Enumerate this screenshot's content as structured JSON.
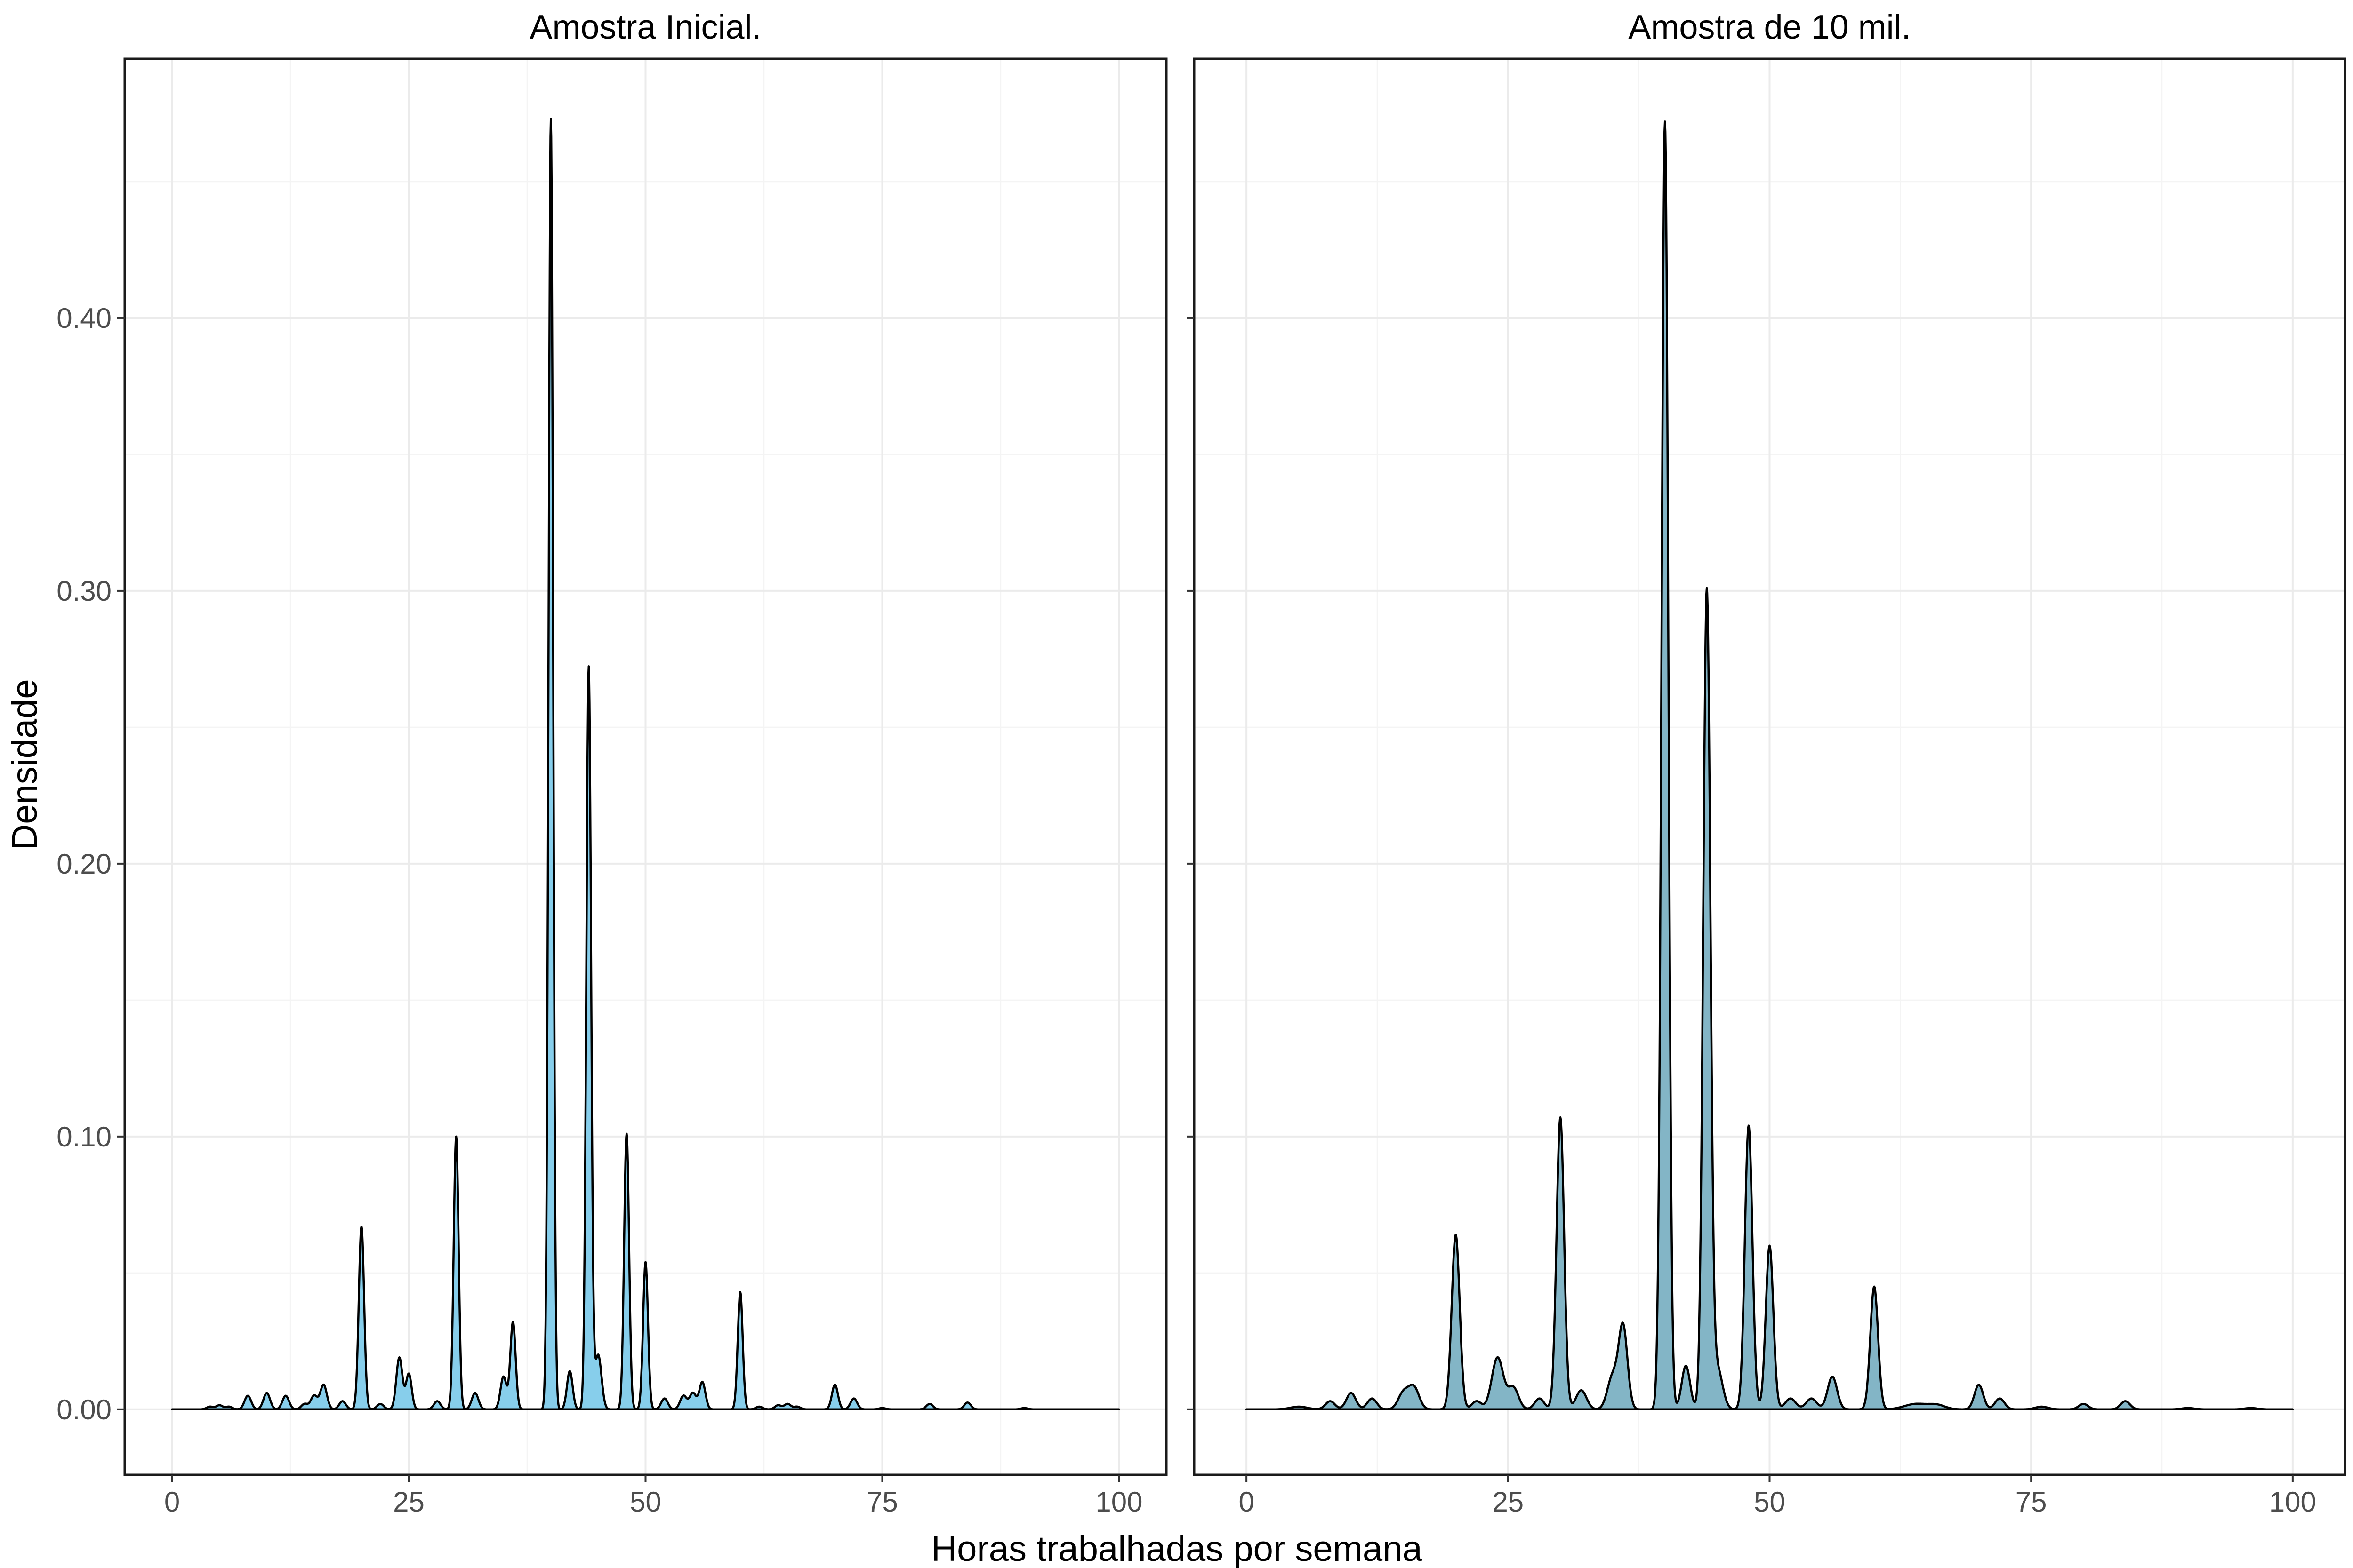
{
  "chart_data": {
    "type": "area",
    "xlabel": "Horas trabalhadas por semana",
    "ylabel": "Densidade",
    "xlim": [
      -5,
      105
    ],
    "ylim": [
      -0.024,
      0.495
    ],
    "x_ticks": [
      0,
      25,
      50,
      75,
      100
    ],
    "x_tick_labels": [
      "0",
      "25",
      "50",
      "75",
      "100"
    ],
    "y_ticks": [
      0.0,
      0.1,
      0.2,
      0.3,
      0.4
    ],
    "y_tick_labels": [
      "0.00",
      "0.10",
      "0.20",
      "0.30",
      "0.40"
    ],
    "grid": true,
    "panels": [
      {
        "title": "Amostra Inicial.",
        "fill_color": "#87ceeb",
        "baseline": [
          0.0,
          100.0
        ],
        "peaks": [
          {
            "x": 4,
            "y": 0.001,
            "w": 0.35
          },
          {
            "x": 5,
            "y": 0.0015,
            "w": 0.35
          },
          {
            "x": 6,
            "y": 0.001,
            "w": 0.35
          },
          {
            "x": 8,
            "y": 0.005,
            "w": 0.35
          },
          {
            "x": 10,
            "y": 0.006,
            "w": 0.35
          },
          {
            "x": 12,
            "y": 0.005,
            "w": 0.35
          },
          {
            "x": 14,
            "y": 0.002,
            "w": 0.35
          },
          {
            "x": 15,
            "y": 0.005,
            "w": 0.35
          },
          {
            "x": 16,
            "y": 0.009,
            "w": 0.35
          },
          {
            "x": 18,
            "y": 0.003,
            "w": 0.35
          },
          {
            "x": 20,
            "y": 0.067,
            "w": 0.28
          },
          {
            "x": 22,
            "y": 0.002,
            "w": 0.35
          },
          {
            "x": 24,
            "y": 0.019,
            "w": 0.32
          },
          {
            "x": 25,
            "y": 0.013,
            "w": 0.3
          },
          {
            "x": 28,
            "y": 0.003,
            "w": 0.35
          },
          {
            "x": 30,
            "y": 0.1,
            "w": 0.26
          },
          {
            "x": 32,
            "y": 0.006,
            "w": 0.35
          },
          {
            "x": 35,
            "y": 0.012,
            "w": 0.32
          },
          {
            "x": 36,
            "y": 0.032,
            "w": 0.28
          },
          {
            "x": 40,
            "y": 0.473,
            "w": 0.24
          },
          {
            "x": 42,
            "y": 0.014,
            "w": 0.3
          },
          {
            "x": 44,
            "y": 0.272,
            "w": 0.25
          },
          {
            "x": 45,
            "y": 0.02,
            "w": 0.35
          },
          {
            "x": 48,
            "y": 0.101,
            "w": 0.26
          },
          {
            "x": 50,
            "y": 0.054,
            "w": 0.26
          },
          {
            "x": 52,
            "y": 0.004,
            "w": 0.35
          },
          {
            "x": 54,
            "y": 0.005,
            "w": 0.35
          },
          {
            "x": 55,
            "y": 0.006,
            "w": 0.35
          },
          {
            "x": 56,
            "y": 0.01,
            "w": 0.32
          },
          {
            "x": 60,
            "y": 0.043,
            "w": 0.26
          },
          {
            "x": 62,
            "y": 0.001,
            "w": 0.35
          },
          {
            "x": 64,
            "y": 0.0015,
            "w": 0.35
          },
          {
            "x": 65,
            "y": 0.002,
            "w": 0.35
          },
          {
            "x": 66,
            "y": 0.001,
            "w": 0.35
          },
          {
            "x": 70,
            "y": 0.009,
            "w": 0.32
          },
          {
            "x": 72,
            "y": 0.004,
            "w": 0.35
          },
          {
            "x": 75,
            "y": 0.0005,
            "w": 0.35
          },
          {
            "x": 80,
            "y": 0.002,
            "w": 0.35
          },
          {
            "x": 84,
            "y": 0.0025,
            "w": 0.35
          },
          {
            "x": 90,
            "y": 0.0005,
            "w": 0.35
          }
        ]
      },
      {
        "title": "Amostra de 10 mil.",
        "fill_color": "#83b5c6",
        "baseline": [
          0.0,
          100.0
        ],
        "peaks": [
          {
            "x": 5,
            "y": 0.001,
            "w": 0.8
          },
          {
            "x": 8,
            "y": 0.003,
            "w": 0.45
          },
          {
            "x": 10,
            "y": 0.006,
            "w": 0.45
          },
          {
            "x": 12,
            "y": 0.004,
            "w": 0.45
          },
          {
            "x": 15,
            "y": 0.006,
            "w": 0.5
          },
          {
            "x": 16,
            "y": 0.008,
            "w": 0.5
          },
          {
            "x": 20,
            "y": 0.064,
            "w": 0.38
          },
          {
            "x": 22,
            "y": 0.003,
            "w": 0.45
          },
          {
            "x": 24,
            "y": 0.019,
            "w": 0.55
          },
          {
            "x": 25.5,
            "y": 0.008,
            "w": 0.5
          },
          {
            "x": 28,
            "y": 0.004,
            "w": 0.45
          },
          {
            "x": 30,
            "y": 0.107,
            "w": 0.36
          },
          {
            "x": 32,
            "y": 0.007,
            "w": 0.5
          },
          {
            "x": 35,
            "y": 0.012,
            "w": 0.5
          },
          {
            "x": 36,
            "y": 0.03,
            "w": 0.42
          },
          {
            "x": 40,
            "y": 0.472,
            "w": 0.32
          },
          {
            "x": 42,
            "y": 0.016,
            "w": 0.4
          },
          {
            "x": 44,
            "y": 0.299,
            "w": 0.34
          },
          {
            "x": 45,
            "y": 0.015,
            "w": 0.5
          },
          {
            "x": 48,
            "y": 0.104,
            "w": 0.36
          },
          {
            "x": 50,
            "y": 0.06,
            "w": 0.36
          },
          {
            "x": 52,
            "y": 0.004,
            "w": 0.5
          },
          {
            "x": 54,
            "y": 0.004,
            "w": 0.5
          },
          {
            "x": 56,
            "y": 0.012,
            "w": 0.45
          },
          {
            "x": 60,
            "y": 0.045,
            "w": 0.37
          },
          {
            "x": 64,
            "y": 0.002,
            "w": 1.1
          },
          {
            "x": 66,
            "y": 0.0015,
            "w": 0.8
          },
          {
            "x": 70,
            "y": 0.009,
            "w": 0.42
          },
          {
            "x": 72,
            "y": 0.004,
            "w": 0.45
          },
          {
            "x": 76,
            "y": 0.001,
            "w": 0.6
          },
          {
            "x": 80,
            "y": 0.002,
            "w": 0.45
          },
          {
            "x": 84,
            "y": 0.003,
            "w": 0.45
          },
          {
            "x": 90,
            "y": 0.0005,
            "w": 0.6
          },
          {
            "x": 96,
            "y": 0.0005,
            "w": 0.6
          }
        ]
      }
    ]
  }
}
